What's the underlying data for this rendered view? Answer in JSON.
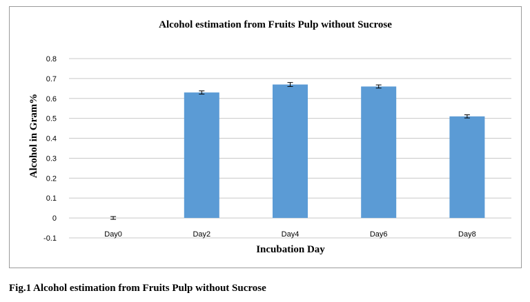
{
  "caption": "Fig.1 Alcohol estimation from Fruits Pulp without Sucrose",
  "chart_data": {
    "type": "bar",
    "title": "Alcohol estimation from Fruits Pulp without Sucrose",
    "xlabel": "Incubation Day",
    "ylabel": "Alcohol in Gram%",
    "categories": [
      "Day0",
      "Day2",
      "Day4",
      "Day6",
      "Day8"
    ],
    "values": [
      0,
      0.63,
      0.67,
      0.66,
      0.51
    ],
    "error": [
      0.007,
      0.008,
      0.01,
      0.008,
      0.008
    ],
    "ylim": [
      -0.1,
      0.8
    ],
    "yticks": [
      "-0.1",
      "0",
      "0.1",
      "0.2",
      "0.3",
      "0.4",
      "0.5",
      "0.6",
      "0.7",
      "0.8"
    ],
    "bar_color": "#5b9bd5",
    "grid": true,
    "legend": "none"
  }
}
